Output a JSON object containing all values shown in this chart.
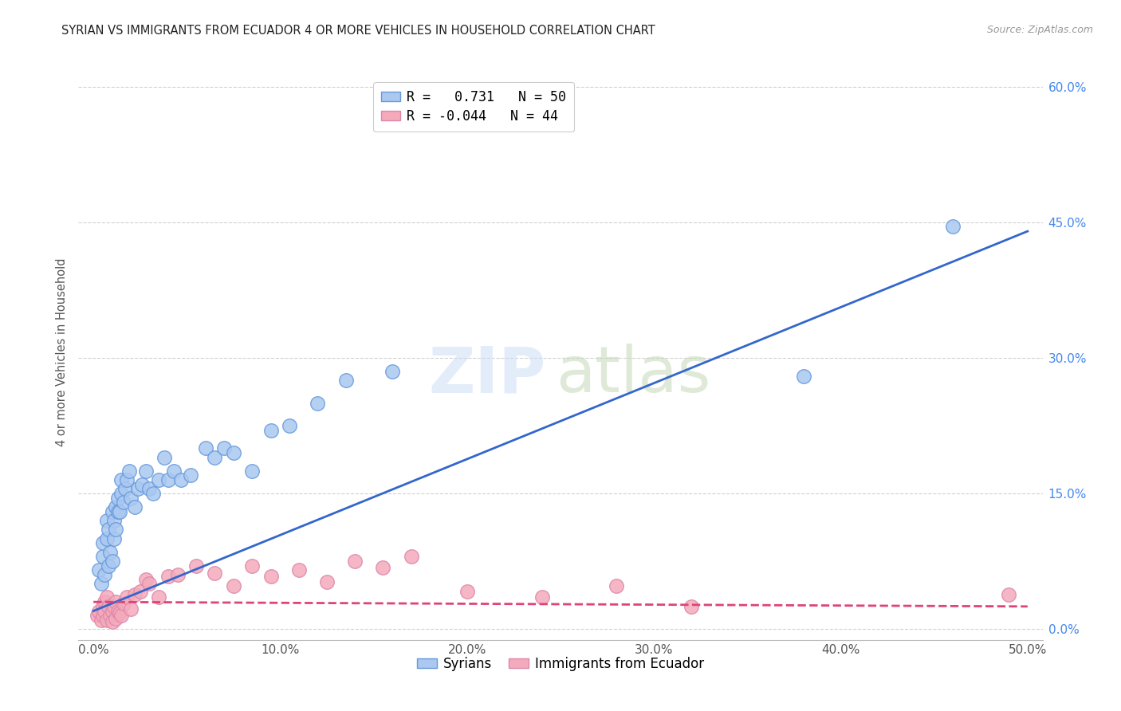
{
  "title": "SYRIAN VS IMMIGRANTS FROM ECUADOR 4 OR MORE VEHICLES IN HOUSEHOLD CORRELATION CHART",
  "source": "Source: ZipAtlas.com",
  "ylabel": "4 or more Vehicles in Household",
  "xlim": [
    0.0,
    0.5
  ],
  "ylim": [
    0.0,
    0.62
  ],
  "xticks": [
    0.0,
    0.1,
    0.2,
    0.3,
    0.4,
    0.5
  ],
  "xticklabels": [
    "0.0%",
    "10.0%",
    "20.0%",
    "30.0%",
    "40.0%",
    "50.0%"
  ],
  "right_yticks": [
    0.0,
    0.15,
    0.3,
    0.45,
    0.6
  ],
  "right_yticklabels": [
    "0.0%",
    "15.0%",
    "30.0%",
    "45.0%",
    "60.0%"
  ],
  "legend1_label": "R =   0.731   N = 50",
  "legend2_label": "R = -0.044   N = 44",
  "legend1_color": "#aac8f0",
  "legend2_color": "#f4aabb",
  "line1_color": "#3366cc",
  "line2_color": "#dd4477",
  "scatter1_color": "#aac8f0",
  "scatter2_color": "#f4aabb",
  "scatter1_edge": "#6699dd",
  "scatter2_edge": "#dd88aa",
  "watermark_zip": "ZIP",
  "watermark_atlas": "atlas",
  "legend_label_syrians": "Syrians",
  "legend_label_ecuador": "Immigrants from Ecuador",
  "syrians_x": [
    0.003,
    0.004,
    0.005,
    0.005,
    0.006,
    0.007,
    0.007,
    0.008,
    0.008,
    0.009,
    0.01,
    0.01,
    0.011,
    0.011,
    0.012,
    0.012,
    0.013,
    0.013,
    0.014,
    0.015,
    0.015,
    0.016,
    0.017,
    0.018,
    0.019,
    0.02,
    0.022,
    0.024,
    0.026,
    0.028,
    0.03,
    0.032,
    0.035,
    0.038,
    0.04,
    0.043,
    0.047,
    0.052,
    0.06,
    0.065,
    0.07,
    0.075,
    0.085,
    0.095,
    0.105,
    0.12,
    0.135,
    0.16,
    0.38,
    0.46
  ],
  "syrians_y": [
    0.065,
    0.05,
    0.08,
    0.095,
    0.06,
    0.1,
    0.12,
    0.07,
    0.11,
    0.085,
    0.075,
    0.13,
    0.1,
    0.12,
    0.11,
    0.135,
    0.13,
    0.145,
    0.13,
    0.15,
    0.165,
    0.14,
    0.155,
    0.165,
    0.175,
    0.145,
    0.135,
    0.155,
    0.16,
    0.175,
    0.155,
    0.15,
    0.165,
    0.19,
    0.165,
    0.175,
    0.165,
    0.17,
    0.2,
    0.19,
    0.2,
    0.195,
    0.175,
    0.22,
    0.225,
    0.25,
    0.275,
    0.285,
    0.28,
    0.445
  ],
  "ecuador_x": [
    0.002,
    0.003,
    0.004,
    0.005,
    0.005,
    0.006,
    0.006,
    0.007,
    0.007,
    0.008,
    0.009,
    0.01,
    0.01,
    0.011,
    0.012,
    0.012,
    0.013,
    0.014,
    0.015,
    0.016,
    0.018,
    0.02,
    0.022,
    0.025,
    0.028,
    0.03,
    0.035,
    0.04,
    0.045,
    0.055,
    0.065,
    0.075,
    0.085,
    0.095,
    0.11,
    0.125,
    0.14,
    0.155,
    0.17,
    0.2,
    0.24,
    0.28,
    0.32,
    0.49
  ],
  "ecuador_y": [
    0.015,
    0.02,
    0.01,
    0.025,
    0.015,
    0.03,
    0.02,
    0.01,
    0.035,
    0.025,
    0.015,
    0.02,
    0.008,
    0.025,
    0.03,
    0.012,
    0.02,
    0.018,
    0.015,
    0.028,
    0.035,
    0.022,
    0.038,
    0.042,
    0.055,
    0.05,
    0.035,
    0.058,
    0.06,
    0.07,
    0.062,
    0.048,
    0.07,
    0.058,
    0.065,
    0.052,
    0.075,
    0.068,
    0.08,
    0.042,
    0.035,
    0.048,
    0.025,
    0.038
  ],
  "line1_x0": 0.0,
  "line1_x1": 0.5,
  "line1_y0": 0.02,
  "line1_y1": 0.44,
  "line2_x0": 0.0,
  "line2_x1": 0.5,
  "line2_y0": 0.03,
  "line2_y1": 0.025
}
